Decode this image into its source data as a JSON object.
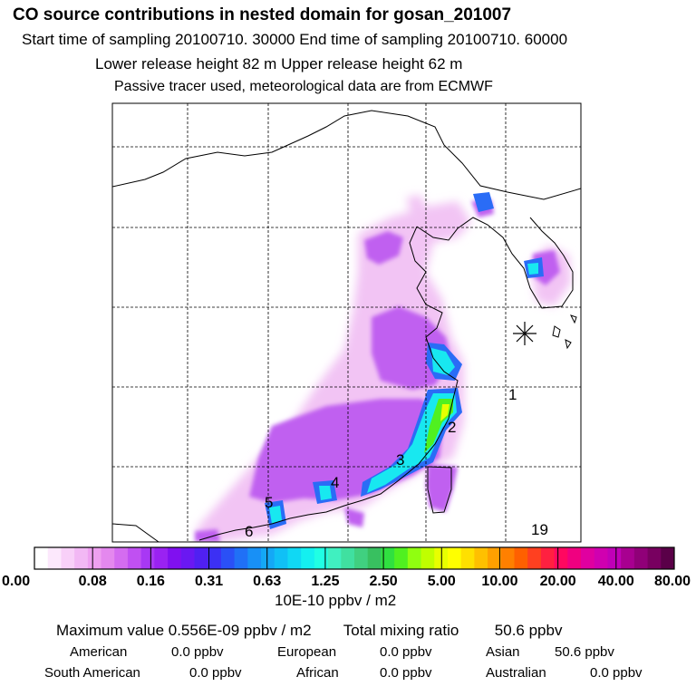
{
  "header": {
    "title": "CO  source contributions in nested domain for gosan_201007",
    "sampling": "Start time of sampling 20100710. 30000     End time of sampling 20100710. 60000",
    "heights": "Lower release height   82 m          Upper release height   62 m",
    "tracer_note": "Passive tracer used, meteorological data are from ECMWF"
  },
  "chart_data": {
    "type": "heatmap",
    "title": "CO  source contributions in nested domain for gosan_201007",
    "region_labels": [
      "1",
      "2",
      "3",
      "4",
      "5",
      "6",
      "19"
    ],
    "colorbar": {
      "tick_labels": [
        "0.00",
        "0.08",
        "0.16",
        "0.31",
        "0.63",
        "1.25",
        "2.50",
        "5.00",
        "10.00",
        "20.00",
        "40.00",
        "80.00"
      ],
      "units": "10E-10 ppbv / m2",
      "colors": [
        "#ffffff",
        "#fce8fc",
        "#f8d0f8",
        "#f2b8f4",
        "#eea0f0",
        "#e488ee",
        "#d46cf0",
        "#c050f2",
        "#a838f4",
        "#9a22f2",
        "#8010f0",
        "#6a18f2",
        "#5020f2",
        "#3c30f4",
        "#2a50f6",
        "#2070f6",
        "#1890f6",
        "#14a8f6",
        "#10c0f6",
        "#10d8f4",
        "#14f0f0",
        "#20ffe4",
        "#40f0c0",
        "#40e0a0",
        "#40d080",
        "#38c060",
        "#30e040",
        "#50f020",
        "#90ff10",
        "#c0ff00",
        "#e8ff00",
        "#ffff00",
        "#ffe000",
        "#ffc000",
        "#ffa000",
        "#ff8000",
        "#ff6000",
        "#ff4020",
        "#ff2040",
        "#ff0860",
        "#f00080",
        "#e000a0",
        "#d000b0",
        "#c000b8",
        "#a80090",
        "#900078",
        "#780060",
        "#5a0048"
      ]
    },
    "stats": {
      "maximum_label": "Maximum value  0.556E-09 ppbv / m2",
      "total_label": "Total mixing ratio",
      "total_value": "50.6 ppbv"
    },
    "regional_contributions": [
      {
        "label": "American",
        "value": "0.0 ppbv"
      },
      {
        "label": "European",
        "value": "0.0 ppbv"
      },
      {
        "label": "Asian",
        "value": "50.6 ppbv"
      },
      {
        "label": "South American",
        "value": "0.0 ppbv"
      },
      {
        "label": "African",
        "value": "0.0 ppbv"
      },
      {
        "label": "Australian",
        "value": "0.0 ppbv"
      }
    ]
  }
}
